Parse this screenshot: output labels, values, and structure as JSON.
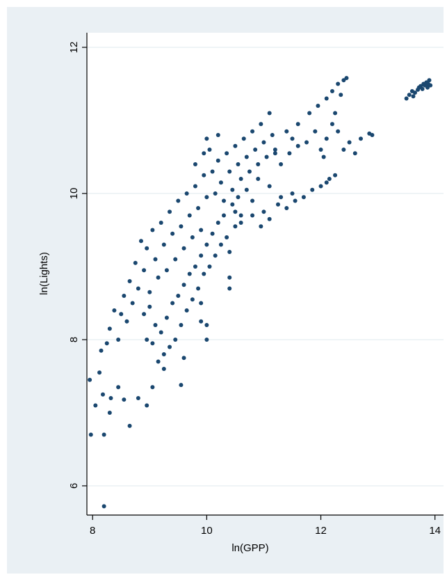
{
  "chart_data": {
    "type": "scatter",
    "title": "",
    "xlabel": "ln(GPP)",
    "ylabel": "ln(Lights)",
    "xlim": [
      7.9,
      14.15
    ],
    "ylim": [
      5.6,
      12.2
    ],
    "xticks": [
      8,
      10,
      12,
      14
    ],
    "yticks": [
      6,
      8,
      10,
      12
    ],
    "grid": "horizontal",
    "legend": "none",
    "colors": {
      "outer_background": "#eaf0f4",
      "plot_background": "#ffffff",
      "marker": "#1a476f",
      "grid": "#eaf0f4"
    },
    "series": [
      {
        "points": [
          [
            7.95,
            7.45
          ],
          [
            7.97,
            6.7
          ],
          [
            8.05,
            7.1
          ],
          [
            8.12,
            7.55
          ],
          [
            8.18,
            7.25
          ],
          [
            8.2,
            6.7
          ],
          [
            8.2,
            5.72
          ],
          [
            8.3,
            7.0
          ],
          [
            8.32,
            7.2
          ],
          [
            8.45,
            7.35
          ],
          [
            8.55,
            7.18
          ],
          [
            8.65,
            6.82
          ],
          [
            8.8,
            7.2
          ],
          [
            8.95,
            7.1
          ],
          [
            9.05,
            7.35
          ],
          [
            9.55,
            7.38
          ],
          [
            8.15,
            7.85
          ],
          [
            8.25,
            7.95
          ],
          [
            8.3,
            8.15
          ],
          [
            8.38,
            8.4
          ],
          [
            8.45,
            8.0
          ],
          [
            8.5,
            8.35
          ],
          [
            8.55,
            8.6
          ],
          [
            8.6,
            8.25
          ],
          [
            8.65,
            8.8
          ],
          [
            8.7,
            8.5
          ],
          [
            8.75,
            9.05
          ],
          [
            8.8,
            8.7
          ],
          [
            8.85,
            9.35
          ],
          [
            8.9,
            8.95
          ],
          [
            8.95,
            9.25
          ],
          [
            9.0,
            8.65
          ],
          [
            9.05,
            9.5
          ],
          [
            9.1,
            9.1
          ],
          [
            9.15,
            8.85
          ],
          [
            9.2,
            9.6
          ],
          [
            9.25,
            9.3
          ],
          [
            9.3,
            8.95
          ],
          [
            9.35,
            9.75
          ],
          [
            9.4,
            9.45
          ],
          [
            9.45,
            9.1
          ],
          [
            9.5,
            9.9
          ],
          [
            9.55,
            9.55
          ],
          [
            9.6,
            9.25
          ],
          [
            9.65,
            10.0
          ],
          [
            9.7,
            9.7
          ],
          [
            9.75,
            9.4
          ],
          [
            9.8,
            10.1
          ],
          [
            9.85,
            9.8
          ],
          [
            9.9,
            9.5
          ],
          [
            9.95,
            10.25
          ],
          [
            10.0,
            9.95
          ],
          [
            10.05,
            10.6
          ],
          [
            10.1,
            10.3
          ],
          [
            10.15,
            10.0
          ],
          [
            10.2,
            10.45
          ],
          [
            10.25,
            10.15
          ],
          [
            10.3,
            9.9
          ],
          [
            10.35,
            10.55
          ],
          [
            10.4,
            10.3
          ],
          [
            10.45,
            10.05
          ],
          [
            10.5,
            10.65
          ],
          [
            10.55,
            10.4
          ],
          [
            10.6,
            10.2
          ],
          [
            10.65,
            10.75
          ],
          [
            10.7,
            10.5
          ],
          [
            10.75,
            10.3
          ],
          [
            10.8,
            10.85
          ],
          [
            10.85,
            10.6
          ],
          [
            10.9,
            10.4
          ],
          [
            10.95,
            10.95
          ],
          [
            11.0,
            10.7
          ],
          [
            11.05,
            10.5
          ],
          [
            11.1,
            11.1
          ],
          [
            11.15,
            10.8
          ],
          [
            11.2,
            10.6
          ],
          [
            10.2,
            10.8
          ],
          [
            10.0,
            10.75
          ],
          [
            9.95,
            10.55
          ],
          [
            9.8,
            10.4
          ],
          [
            8.9,
            8.35
          ],
          [
            8.95,
            8.0
          ],
          [
            9.0,
            8.45
          ],
          [
            9.05,
            7.95
          ],
          [
            9.1,
            8.2
          ],
          [
            9.15,
            7.7
          ],
          [
            9.2,
            8.1
          ],
          [
            9.25,
            7.8
          ],
          [
            9.3,
            8.3
          ],
          [
            9.35,
            7.9
          ],
          [
            9.4,
            8.5
          ],
          [
            9.45,
            8.0
          ],
          [
            9.5,
            8.6
          ],
          [
            9.55,
            8.2
          ],
          [
            9.6,
            8.75
          ],
          [
            9.65,
            8.4
          ],
          [
            9.7,
            8.9
          ],
          [
            9.75,
            8.55
          ],
          [
            9.8,
            9.0
          ],
          [
            9.85,
            8.7
          ],
          [
            9.9,
            9.15
          ],
          [
            9.95,
            8.9
          ],
          [
            10.0,
            9.3
          ],
          [
            10.05,
            9.0
          ],
          [
            10.1,
            9.45
          ],
          [
            10.15,
            9.15
          ],
          [
            10.2,
            9.6
          ],
          [
            10.25,
            9.3
          ],
          [
            10.3,
            9.7
          ],
          [
            10.35,
            9.4
          ],
          [
            10.4,
            9.2
          ],
          [
            10.45,
            9.85
          ],
          [
            10.5,
            9.55
          ],
          [
            10.55,
            9.95
          ],
          [
            10.6,
            9.7
          ],
          [
            10.7,
            10.05
          ],
          [
            10.8,
            9.9
          ],
          [
            10.9,
            10.2
          ],
          [
            11.0,
            9.75
          ],
          [
            11.1,
            10.1
          ],
          [
            9.9,
            8.25
          ],
          [
            10.0,
            8.2
          ],
          [
            10.0,
            8.0
          ],
          [
            9.9,
            8.5
          ],
          [
            10.4,
            8.7
          ],
          [
            10.4,
            8.85
          ],
          [
            9.6,
            7.75
          ],
          [
            9.25,
            7.6
          ],
          [
            10.5,
            9.75
          ],
          [
            10.6,
            9.6
          ],
          [
            10.8,
            9.7
          ],
          [
            10.95,
            9.55
          ],
          [
            11.1,
            9.65
          ],
          [
            11.25,
            9.85
          ],
          [
            11.4,
            9.8
          ],
          [
            11.55,
            9.9
          ],
          [
            11.7,
            9.95
          ],
          [
            11.85,
            10.05
          ],
          [
            12.0,
            10.1
          ],
          [
            12.15,
            10.2
          ],
          [
            12.25,
            10.25
          ],
          [
            11.5,
            10.0
          ],
          [
            11.3,
            9.95
          ],
          [
            12.1,
            10.15
          ],
          [
            11.3,
            10.4
          ],
          [
            11.45,
            10.55
          ],
          [
            11.6,
            10.65
          ],
          [
            11.75,
            10.7
          ],
          [
            11.9,
            10.85
          ],
          [
            12.0,
            10.6
          ],
          [
            12.1,
            10.75
          ],
          [
            12.2,
            10.95
          ],
          [
            12.3,
            10.85
          ],
          [
            12.4,
            10.6
          ],
          [
            12.5,
            10.7
          ],
          [
            12.7,
            10.75
          ],
          [
            12.9,
            10.8
          ],
          [
            12.85,
            10.82
          ],
          [
            11.6,
            10.95
          ],
          [
            11.8,
            11.1
          ],
          [
            11.95,
            11.2
          ],
          [
            12.1,
            11.3
          ],
          [
            12.2,
            11.4
          ],
          [
            12.3,
            11.5
          ],
          [
            12.4,
            11.55
          ],
          [
            12.45,
            11.58
          ],
          [
            12.25,
            11.1
          ],
          [
            12.35,
            11.35
          ],
          [
            11.5,
            10.75
          ],
          [
            11.2,
            10.55
          ],
          [
            11.4,
            10.85
          ],
          [
            12.05,
            10.5
          ],
          [
            12.6,
            10.55
          ],
          [
            13.5,
            11.3
          ],
          [
            13.55,
            11.35
          ],
          [
            13.6,
            11.4
          ],
          [
            13.65,
            11.38
          ],
          [
            13.7,
            11.42
          ],
          [
            13.72,
            11.45
          ],
          [
            13.75,
            11.47
          ],
          [
            13.78,
            11.43
          ],
          [
            13.8,
            11.5
          ],
          [
            13.82,
            11.48
          ],
          [
            13.85,
            11.52
          ],
          [
            13.88,
            11.5
          ],
          [
            13.9,
            11.55
          ],
          [
            13.87,
            11.45
          ],
          [
            13.92,
            11.48
          ],
          [
            13.62,
            11.33
          ]
        ]
      }
    ]
  }
}
